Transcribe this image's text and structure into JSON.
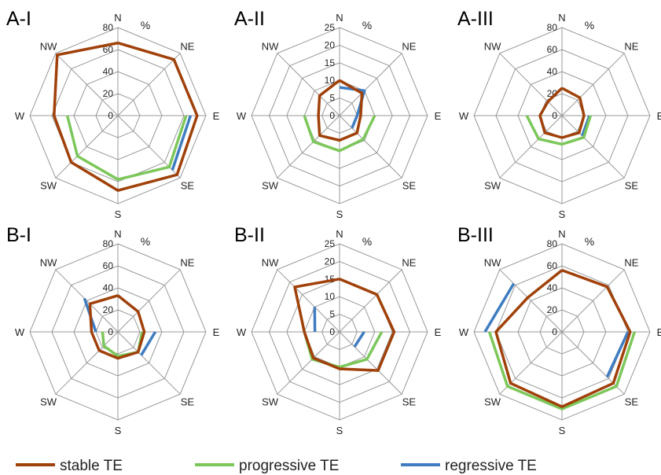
{
  "colors": {
    "stable": "#a0410a",
    "progressive": "#7cc75a",
    "regressive": "#3f7cc0",
    "grid": "#999999"
  },
  "legend": [
    {
      "key": "stable",
      "label": "stable TE"
    },
    {
      "key": "progressive",
      "label": "progressive TE"
    },
    {
      "key": "regressive",
      "label": "regressive TE"
    }
  ],
  "chart_data": [
    {
      "type": "radar",
      "panel": "A-I",
      "unit": "%",
      "categories": [
        "N",
        "NE",
        "E",
        "SE",
        "S",
        "SW",
        "W",
        "NW"
      ],
      "rlim": [
        0,
        80
      ],
      "ticks": [
        0,
        20,
        40,
        60,
        80
      ],
      "series": [
        {
          "key": "stable",
          "values": [
            66,
            72,
            72,
            76,
            68,
            60,
            58,
            78
          ]
        },
        {
          "key": "progressive",
          "values": [
            null,
            null,
            62,
            66,
            58,
            52,
            46,
            null
          ]
        },
        {
          "key": "regressive",
          "values": [
            70,
            null,
            66,
            70,
            null,
            null,
            null,
            null
          ]
        }
      ]
    },
    {
      "type": "radar",
      "panel": "A-II",
      "unit": "%",
      "categories": [
        "N",
        "NE",
        "E",
        "SE",
        "S",
        "SW",
        "W",
        "NW"
      ],
      "rlim": [
        0,
        25
      ],
      "ticks": [
        0,
        5,
        10,
        15,
        20,
        25
      ],
      "series": [
        {
          "key": "stable",
          "values": [
            10,
            9,
            6,
            7,
            7,
            8,
            6,
            8
          ]
        },
        {
          "key": "progressive",
          "values": [
            null,
            null,
            10,
            9.5,
            10,
            10.5,
            10,
            null
          ]
        },
        {
          "key": "regressive",
          "values": [
            8,
            10,
            5,
            5,
            null,
            null,
            null,
            6.5
          ]
        }
      ]
    },
    {
      "type": "radar",
      "panel": "A-III",
      "unit": "%",
      "categories": [
        "N",
        "NE",
        "E",
        "SE",
        "S",
        "SW",
        "W",
        "NW"
      ],
      "rlim": [
        0,
        80
      ],
      "ticks": [
        0,
        20,
        40,
        60,
        80
      ],
      "series": [
        {
          "key": "stable",
          "values": [
            25,
            23,
            20,
            22,
            20,
            22,
            20,
            18
          ]
        },
        {
          "key": "progressive",
          "values": [
            null,
            null,
            26,
            28,
            26,
            30,
            32,
            null
          ]
        },
        {
          "key": "regressive",
          "values": [
            null,
            null,
            25,
            26,
            null,
            null,
            null,
            22
          ]
        }
      ]
    },
    {
      "type": "radar",
      "panel": "B-I",
      "unit": "%",
      "categories": [
        "N",
        "NE",
        "E",
        "SE",
        "S",
        "SW",
        "W",
        "NW"
      ],
      "rlim": [
        0,
        80
      ],
      "ticks": [
        0,
        20,
        40,
        60,
        80
      ],
      "series": [
        {
          "key": "stable",
          "values": [
            33,
            26,
            24,
            26,
            24,
            24,
            24,
            36
          ]
        },
        {
          "key": "progressive",
          "values": [
            null,
            null,
            22,
            26,
            22,
            18,
            14,
            null
          ]
        },
        {
          "key": "regressive",
          "values": [
            38,
            null,
            34,
            30,
            null,
            null,
            20,
            43
          ]
        }
      ]
    },
    {
      "type": "radar",
      "panel": "B-II",
      "unit": "%",
      "categories": [
        "N",
        "NE",
        "E",
        "SE",
        "S",
        "SW",
        "W",
        "NW"
      ],
      "rlim": [
        0,
        25
      ],
      "ticks": [
        0,
        5,
        10,
        15,
        20,
        25
      ],
      "series": [
        {
          "key": "stable",
          "values": [
            15,
            15,
            15.5,
            15.5,
            10.5,
            10.5,
            10,
            18
          ]
        },
        {
          "key": "progressive",
          "values": [
            null,
            null,
            12,
            11,
            10,
            11,
            10,
            null
          ]
        },
        {
          "key": "regressive",
          "values": [
            11,
            null,
            7,
            6,
            null,
            null,
            7,
            10
          ]
        }
      ]
    },
    {
      "type": "radar",
      "panel": "B-III",
      "unit": "%",
      "categories": [
        "N",
        "NE",
        "E",
        "SE",
        "S",
        "SW",
        "W",
        "NW"
      ],
      "rlim": [
        0,
        80
      ],
      "ticks": [
        0,
        20,
        40,
        60,
        80
      ],
      "series": [
        {
          "key": "stable",
          "values": [
            56,
            58,
            62,
            66,
            68,
            66,
            60,
            44
          ]
        },
        {
          "key": "progressive",
          "values": [
            null,
            null,
            66,
            70,
            70,
            70,
            66,
            null
          ]
        },
        {
          "key": "regressive",
          "values": [
            null,
            null,
            60,
            58,
            null,
            null,
            70,
            62
          ]
        }
      ]
    }
  ]
}
